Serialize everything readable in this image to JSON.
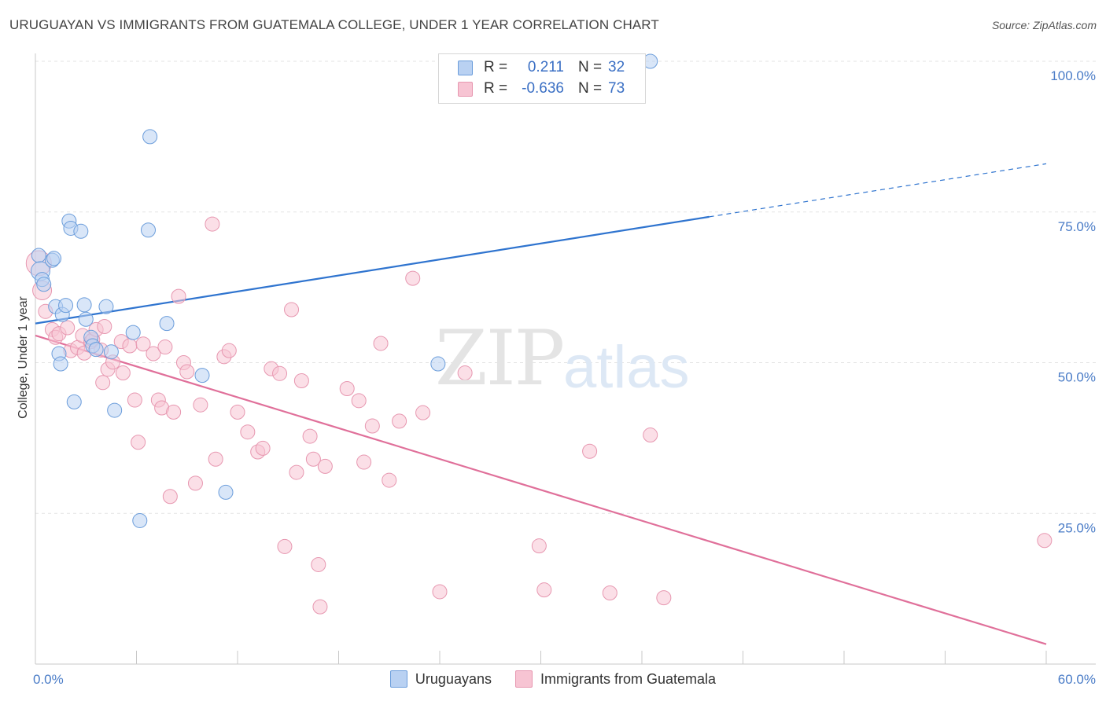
{
  "title": "URUGUAYAN VS IMMIGRANTS FROM GUATEMALA COLLEGE, UNDER 1 YEAR CORRELATION CHART",
  "source": "Source: ZipAtlas.com",
  "watermark": {
    "zip": "ZIP",
    "atlas": "atlas"
  },
  "colors": {
    "blue_fill": "#b9d1f2",
    "blue_stroke": "#6b9ddb",
    "blue_line": "#2f74cf",
    "pink_fill": "#f7c4d3",
    "pink_stroke": "#e797b0",
    "pink_line": "#e0709a",
    "grid": "#e3e3e3",
    "tick_text": "#4a7cc7"
  },
  "legend": {
    "rows": [
      {
        "r_label": "R =",
        "r_value": "0.211",
        "n_label": "N =",
        "n_value": "32",
        "color": "#b9d1f2"
      },
      {
        "r_label": "R =",
        "r_value": "-0.636",
        "n_label": "N =",
        "n_value": "73",
        "color": "#f7c4d3"
      }
    ]
  },
  "bottom_legend": [
    {
      "label": "Uruguayans",
      "color": "#b9d1f2"
    },
    {
      "label": "Immigrants from Guatemala",
      "color": "#f7c4d3"
    }
  ],
  "chart_data": {
    "type": "scatter",
    "title": "URUGUAYAN VS IMMIGRANTS FROM GUATEMALA COLLEGE, UNDER 1 YEAR CORRELATION CHART",
    "xlabel": "",
    "ylabel": "College, Under 1 year",
    "xlim": [
      0,
      60
    ],
    "ylim": [
      0,
      100
    ],
    "x_ticks": [
      0,
      6,
      12,
      18,
      24,
      30,
      36,
      42,
      48,
      54,
      60
    ],
    "x_tick_labels": [
      {
        "value": 0,
        "label": "0.0%"
      },
      {
        "value": 60,
        "label": "60.0%"
      }
    ],
    "y_ticks": [
      {
        "value": 25,
        "label": "25.0%"
      },
      {
        "value": 50,
        "label": "50.0%"
      },
      {
        "value": 75,
        "label": "75.0%"
      },
      {
        "value": 100,
        "label": "100.0%"
      }
    ],
    "grid": true,
    "legend_position": "top-center",
    "series": [
      {
        "name": "Uruguayans",
        "color": "#b9d1f2",
        "points": [
          [
            0.2,
            67.8
          ],
          [
            0.3,
            65.2
          ],
          [
            0.4,
            63.8
          ],
          [
            0.5,
            63.0
          ],
          [
            1.0,
            67.0
          ],
          [
            1.1,
            67.3
          ],
          [
            1.2,
            59.3
          ],
          [
            1.4,
            51.5
          ],
          [
            1.5,
            49.8
          ],
          [
            1.6,
            58.0
          ],
          [
            1.8,
            59.5
          ],
          [
            2.0,
            73.5
          ],
          [
            2.1,
            72.3
          ],
          [
            2.3,
            43.5
          ],
          [
            2.7,
            71.8
          ],
          [
            2.9,
            59.6
          ],
          [
            3.0,
            57.2
          ],
          [
            3.3,
            54.2
          ],
          [
            3.4,
            52.8
          ],
          [
            3.6,
            52.2
          ],
          [
            4.2,
            59.3
          ],
          [
            4.5,
            51.8
          ],
          [
            4.7,
            42.1
          ],
          [
            5.8,
            55.0
          ],
          [
            6.2,
            23.8
          ],
          [
            6.7,
            72.0
          ],
          [
            6.8,
            87.5
          ],
          [
            7.8,
            56.5
          ],
          [
            9.9,
            47.9
          ],
          [
            11.3,
            28.5
          ],
          [
            23.9,
            49.8
          ],
          [
            36.5,
            100.0
          ]
        ]
      },
      {
        "name": "Immigrants from Guatemala",
        "color": "#f7c4d3",
        "points": [
          [
            0.2,
            66.5
          ],
          [
            0.4,
            62.0
          ],
          [
            0.6,
            58.5
          ],
          [
            1.0,
            55.5
          ],
          [
            1.2,
            54.2
          ],
          [
            1.4,
            54.8
          ],
          [
            1.9,
            55.8
          ],
          [
            2.1,
            52.0
          ],
          [
            2.5,
            52.5
          ],
          [
            2.8,
            54.5
          ],
          [
            2.9,
            51.6
          ],
          [
            3.3,
            53.5
          ],
          [
            3.4,
            53.8
          ],
          [
            3.6,
            55.5
          ],
          [
            3.9,
            52.1
          ],
          [
            4.0,
            46.7
          ],
          [
            4.1,
            56.0
          ],
          [
            4.3,
            48.9
          ],
          [
            4.6,
            50.1
          ],
          [
            5.1,
            53.5
          ],
          [
            5.2,
            48.3
          ],
          [
            5.6,
            52.8
          ],
          [
            5.9,
            43.8
          ],
          [
            6.1,
            36.8
          ],
          [
            6.4,
            53.1
          ],
          [
            7.0,
            51.5
          ],
          [
            7.3,
            43.8
          ],
          [
            7.5,
            42.5
          ],
          [
            7.7,
            52.6
          ],
          [
            8.0,
            27.8
          ],
          [
            8.2,
            41.8
          ],
          [
            8.5,
            61.0
          ],
          [
            8.8,
            50.0
          ],
          [
            9.0,
            48.5
          ],
          [
            9.5,
            30.0
          ],
          [
            9.8,
            43.0
          ],
          [
            10.5,
            73.0
          ],
          [
            10.7,
            34.0
          ],
          [
            11.2,
            51.0
          ],
          [
            11.5,
            52.0
          ],
          [
            12.0,
            41.8
          ],
          [
            12.6,
            38.5
          ],
          [
            13.2,
            35.2
          ],
          [
            13.5,
            35.8
          ],
          [
            14.0,
            49.0
          ],
          [
            14.5,
            48.2
          ],
          [
            14.8,
            19.5
          ],
          [
            15.2,
            58.8
          ],
          [
            15.5,
            31.8
          ],
          [
            15.8,
            47.0
          ],
          [
            16.3,
            37.8
          ],
          [
            16.5,
            34.0
          ],
          [
            16.8,
            16.5
          ],
          [
            16.9,
            9.5
          ],
          [
            17.2,
            32.8
          ],
          [
            18.5,
            45.7
          ],
          [
            19.2,
            43.7
          ],
          [
            19.5,
            33.5
          ],
          [
            20.0,
            39.5
          ],
          [
            20.5,
            53.2
          ],
          [
            21.0,
            30.5
          ],
          [
            21.6,
            40.3
          ],
          [
            22.4,
            64.0
          ],
          [
            23.0,
            41.7
          ],
          [
            24.0,
            12.0
          ],
          [
            25.5,
            48.3
          ],
          [
            29.9,
            19.6
          ],
          [
            30.2,
            12.3
          ],
          [
            32.9,
            35.3
          ],
          [
            34.1,
            11.8
          ],
          [
            36.5,
            38.0
          ],
          [
            37.3,
            11.0
          ],
          [
            59.9,
            20.5
          ]
        ]
      }
    ],
    "trendlines": [
      {
        "series": "Uruguayans",
        "x": [
          0,
          40
        ],
        "y": [
          56.5,
          74.2
        ],
        "dashed_x": [
          40,
          60
        ],
        "dashed_y": [
          74.2,
          83.0
        ]
      },
      {
        "series": "Immigrants from Guatemala",
        "x": [
          0,
          60
        ],
        "y": [
          54.5,
          3.3
        ]
      }
    ]
  }
}
